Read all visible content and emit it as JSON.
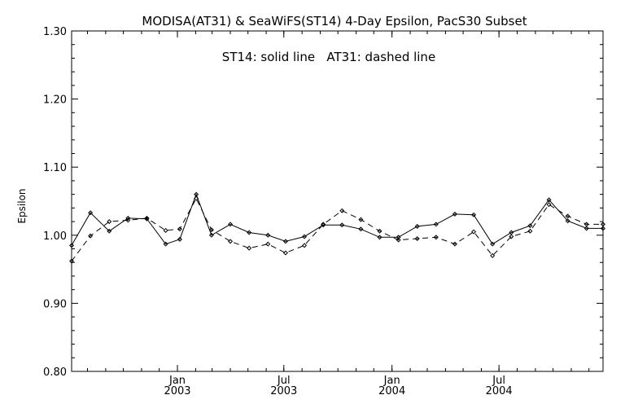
{
  "chart_data": {
    "type": "line",
    "title": "MODISA(AT31) & SeaWiFS(ST14) 4-Day Epsilon, PacS30 Subset",
    "annotation": "ST14: solid line   AT31: dashed line",
    "ylabel": "Epsilon",
    "xlabel": "",
    "ylim": [
      0.8,
      1.3
    ],
    "yticks": [
      {
        "value": 0.8,
        "label": "0.80"
      },
      {
        "value": 0.9,
        "label": "0.90"
      },
      {
        "value": 1.0,
        "label": "1.00"
      },
      {
        "value": 1.1,
        "label": "1.10"
      },
      {
        "value": 1.2,
        "label": "1.20"
      },
      {
        "value": 1.3,
        "label": "1.30"
      }
    ],
    "xlim": [
      "2002-07-05",
      "2004-12-25"
    ],
    "xticks": [
      {
        "date": "2003-01-01",
        "month": "Jan",
        "year": "2003"
      },
      {
        "date": "2003-07-01",
        "month": "Jul",
        "year": "2003"
      },
      {
        "date": "2004-01-01",
        "month": "Jan",
        "year": "2004"
      },
      {
        "date": "2004-07-01",
        "month": "Jul",
        "year": "2004"
      }
    ],
    "grid": false,
    "series": [
      {
        "name": "ST14",
        "style": "solid",
        "color": "#000000",
        "x": [
          "2002-07-05",
          "2002-08-06",
          "2002-09-07",
          "2002-10-09",
          "2002-11-10",
          "2002-12-12",
          "2003-01-05",
          "2003-02-02",
          "2003-02-28",
          "2003-04-01",
          "2003-05-03",
          "2003-06-04",
          "2003-07-04",
          "2003-08-05",
          "2003-09-06",
          "2003-10-08",
          "2003-11-09",
          "2003-12-11",
          "2004-01-12",
          "2004-02-13",
          "2004-03-16",
          "2004-04-17",
          "2004-05-19",
          "2004-06-20",
          "2004-07-22",
          "2004-08-23",
          "2004-09-24",
          "2004-10-26",
          "2004-11-27",
          "2004-12-25"
        ],
        "values": [
          0.985,
          1.033,
          1.006,
          1.025,
          1.024,
          0.987,
          0.994,
          1.06,
          1.0,
          1.016,
          1.004,
          1.0,
          0.991,
          0.998,
          1.015,
          1.015,
          1.009,
          0.997,
          0.997,
          1.013,
          1.016,
          1.031,
          1.03,
          0.987,
          1.004,
          1.014,
          1.052,
          1.021,
          1.01,
          1.01
        ]
      },
      {
        "name": "AT31",
        "style": "dashed",
        "color": "#000000",
        "x": [
          "2002-07-05",
          "2002-08-06",
          "2002-09-07",
          "2002-10-09",
          "2002-11-10",
          "2002-12-12",
          "2003-01-05",
          "2003-02-02",
          "2003-02-28",
          "2003-04-01",
          "2003-05-03",
          "2003-06-04",
          "2003-07-04",
          "2003-08-05",
          "2003-09-06",
          "2003-10-08",
          "2003-11-09",
          "2003-12-11",
          "2004-01-12",
          "2004-02-13",
          "2004-03-16",
          "2004-04-17",
          "2004-05-19",
          "2004-06-20",
          "2004-07-22",
          "2004-08-23",
          "2004-09-24",
          "2004-10-26",
          "2004-11-27",
          "2004-12-25"
        ],
        "values": [
          0.962,
          0.999,
          1.02,
          1.022,
          1.025,
          1.007,
          1.009,
          1.054,
          1.008,
          0.991,
          0.981,
          0.987,
          0.974,
          0.985,
          1.016,
          1.036,
          1.023,
          1.006,
          0.993,
          0.995,
          0.997,
          0.987,
          1.005,
          0.97,
          0.998,
          1.006,
          1.045,
          1.028,
          1.016,
          1.016
        ]
      }
    ]
  }
}
